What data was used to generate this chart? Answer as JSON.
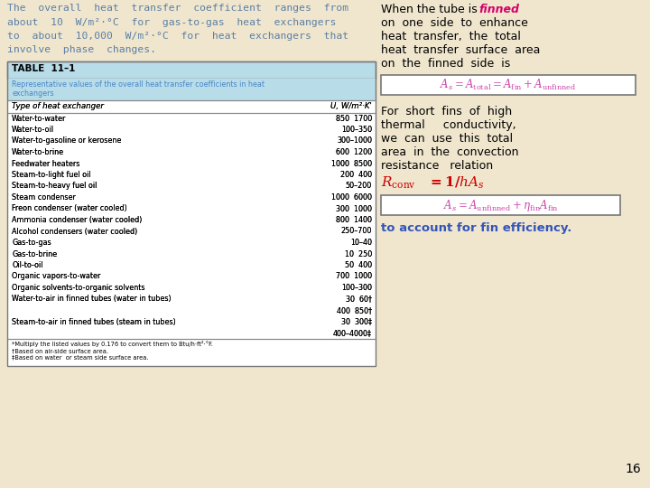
{
  "bg_color": "#f0e6ce",
  "top_text_color": "#5b7fa6",
  "table_title": "TABLE  11–1",
  "table_subtitle": "Representative values of the overall heat transfer coefficients in heat\nexchangers",
  "table_subtitle_color": "#4a86c8",
  "table_header_bg": "#b8dce8",
  "col1_header": "Type of heat exchanger",
  "col2_header": "U, W/m²·K¹",
  "rows": [
    [
      "Water-to-water",
      "850  1700"
    ],
    [
      "Water-to-oil",
      "100–350"
    ],
    [
      "Water-to-gasoline or kerosene",
      "300–1000"
    ],
    [
      "Water-to-brine",
      "600  1200"
    ],
    [
      "Feedwater heaters",
      "1000  8500"
    ],
    [
      "Steam-to-light fuel oil",
      "200  400"
    ],
    [
      "Steam-to-heavy fuel oil",
      "50–200"
    ],
    [
      "Steam condenser",
      "1000  6000"
    ],
    [
      "Freon condenser (water cooled)",
      "300  1000"
    ],
    [
      "Ammonia condenser (water cooled)",
      "800  1400"
    ],
    [
      "Alcohol condensers (water cooled)",
      "250–700"
    ],
    [
      "Gas-to-gas",
      "10–40"
    ],
    [
      "Gas-to-brine",
      "10  250"
    ],
    [
      "Oil-to-oil",
      "50  400"
    ],
    [
      "Organic vapors-to-water",
      "700  1000"
    ],
    [
      "Organic solvents-to-organic solvents",
      "100–300"
    ],
    [
      "Water-to-air in finned tubes (water in tubes)",
      "30  60†"
    ],
    [
      "",
      "400  850†"
    ],
    [
      "Steam-to-air in finned tubes (steam in tubes)",
      "30  300‡"
    ],
    [
      "",
      "400–4000‡"
    ]
  ],
  "footnote": "*Multiply the listed values by 0.176 to convert them to Btu/h·ft²·°F.\n†Based on air-side surface area.\n‡Based on water  or steam side surface area.",
  "eq1_color": "#cc44aa",
  "to_account_color": "#3355bb",
  "page_number": "16",
  "top_lines": [
    "The  overall  heat  transfer  coefficient  ranges  from",
    "about  10  W/m²·°C  for  gas-to-gas  heat  exchangers",
    "to  about  10,000  W/m²·°C  for  heat  exchangers  that",
    "involve  phase  changes."
  ],
  "right_lines1": [
    "on  one  side  to  enhance",
    "heat  transfer,  the  total",
    "heat  transfer  surface  area",
    "on  the  finned  side  is"
  ],
  "right_lines2": [
    "For  short  fins  of  high",
    "thermal     conductivity,",
    "we  can  use  this  total",
    "area  in  the  convection",
    "resistance   relation"
  ]
}
